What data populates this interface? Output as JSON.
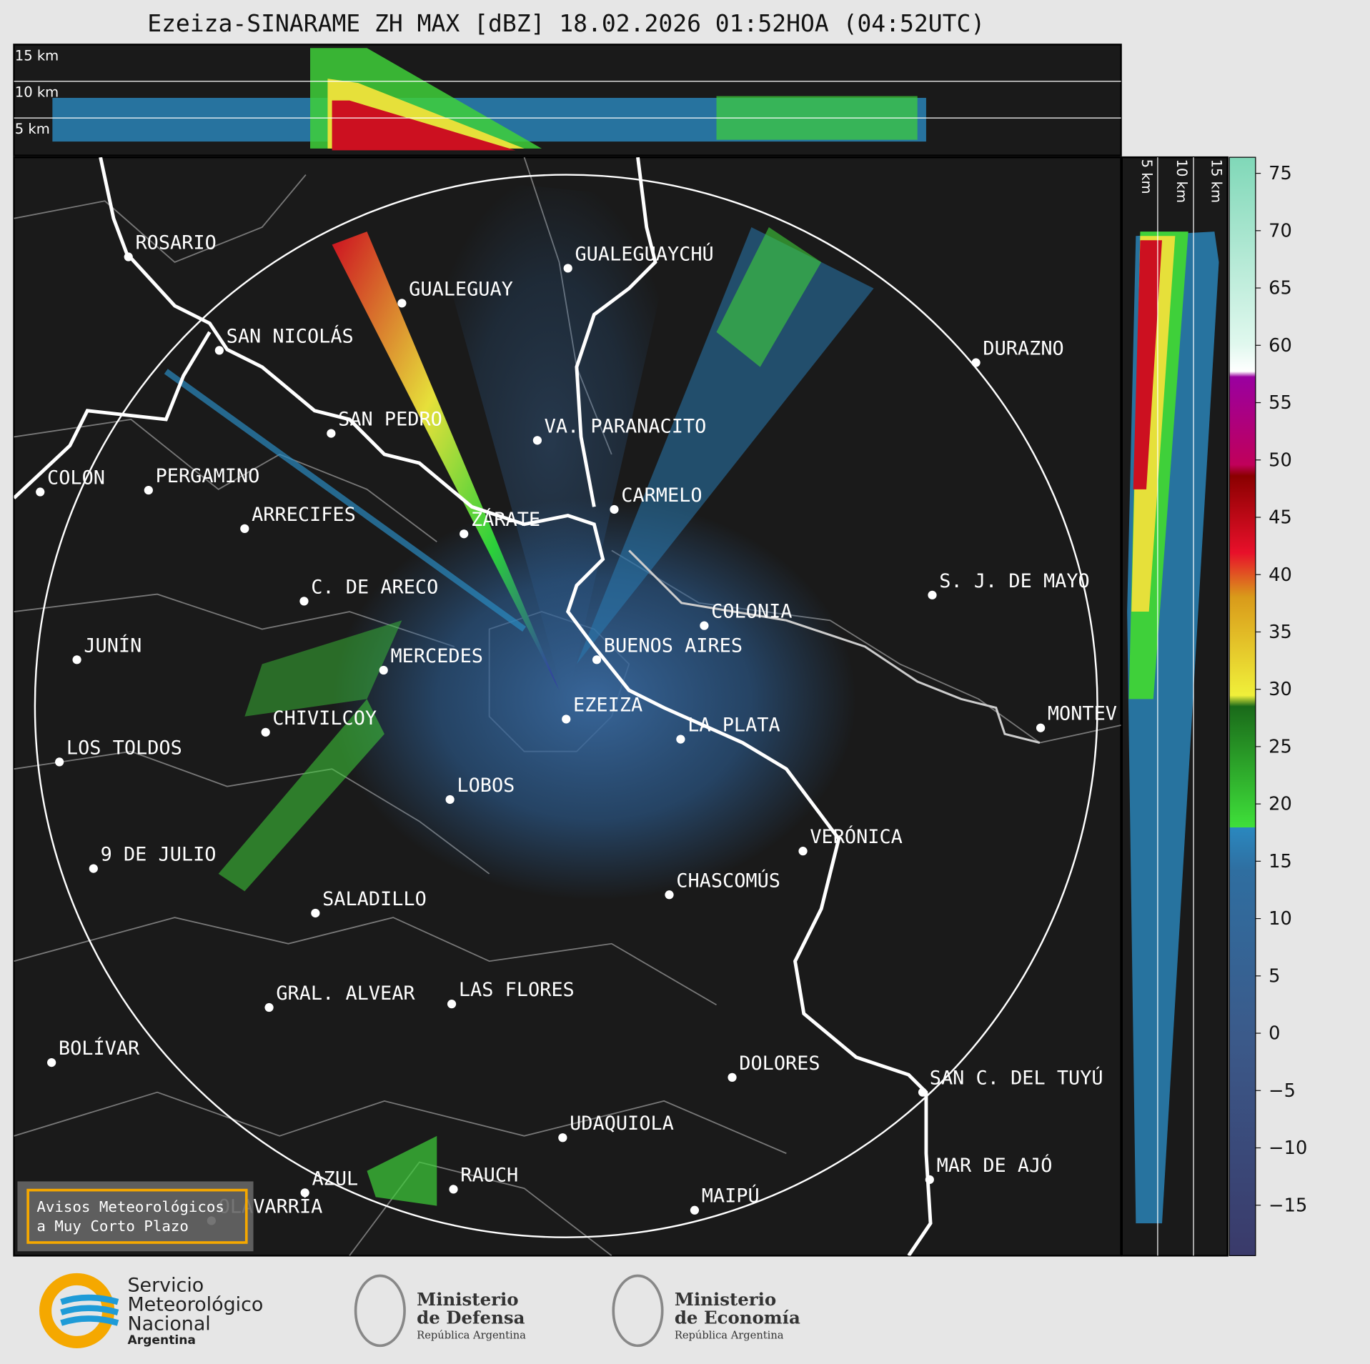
{
  "title": "Ezeiza-SINARAME ZH MAX [dBZ] 18.02.2026 01:52HOA (04:52UTC)",
  "top_panel": {
    "height_labels": [
      "15 km",
      "10 km",
      "5 km"
    ]
  },
  "side_panel": {
    "height_labels": [
      "5 km",
      "10 km",
      "15 km"
    ]
  },
  "cities": [
    "ROSARIO",
    "GUALEGUAYCHÚ",
    "GUALEGUAY",
    "SAN NICOLÁS",
    "DURAZNO",
    "SAN PEDRO",
    "VA. PARANACITO",
    "COLON",
    "PERGAMINO",
    "CARMELO",
    "ARRECIFES",
    "ZÁRATE",
    "C. DE ARECO",
    "S. J. DE MAYO",
    "COLONIA",
    "BUENOS AIRES",
    "JUNÍN",
    "MERCEDES",
    "CHIVILCOY",
    "EZEIZA",
    "MONTEV",
    "LA PLATA",
    "LOS TOLDOS",
    "LOBOS",
    "VERÓNICA",
    "9 DE JULIO",
    "CHASCOMÚS",
    "SALADILLO",
    "GRAL. ALVEAR",
    "LAS FLORES",
    "BOLÍVAR",
    "DOLORES",
    "SAN C. DEL TUYÚ",
    "UDAQUIOLA",
    "MAR DE AJÓ",
    "RAUCH",
    "AZUL",
    "OLAVARRÍA",
    "MAIPÚ"
  ],
  "colorbar": {
    "lim": [
      -19.4,
      76.4
    ],
    "ticks": [
      75,
      70,
      65,
      60,
      55,
      50,
      45,
      40,
      35,
      30,
      25,
      20,
      15,
      10,
      5,
      0,
      {
        "value": -5,
        "label": "−5"
      },
      {
        "value": -10,
        "label": "−10"
      },
      {
        "value": -15,
        "label": "−15"
      }
    ]
  },
  "warning_box": [
    "Avisos Meteorológicos",
    "a Muy Corto Plazo"
  ],
  "logos": {
    "smn": [
      "Servicio",
      "Meteorológico",
      "Nacional",
      "Argentina"
    ],
    "defensa": [
      "Ministerio",
      "de Defensa",
      "República Argentina"
    ],
    "economia": [
      "Ministerio",
      "de Economía",
      "República Argentina"
    ]
  }
}
